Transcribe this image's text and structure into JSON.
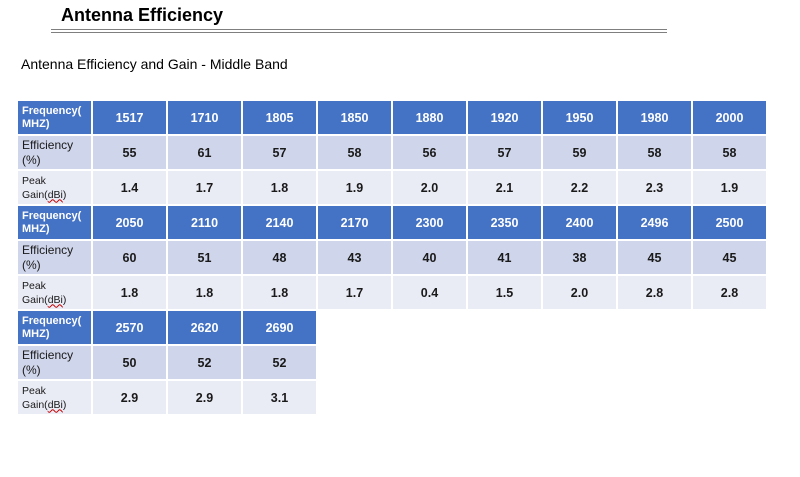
{
  "title": "Antenna Efficiency",
  "subtitle": "Antenna Efficiency and Gain  - Middle Band",
  "row_labels": {
    "freq_line1": "Frequency(",
    "freq_line2": "MHZ)",
    "eff_line1": "Efficiency",
    "eff_line2": "(%)",
    "gain_line1": "Peak",
    "gain_pre": "Gain(",
    "gain_unit": "dBi",
    "gain_post": ")"
  },
  "blocks": [
    {
      "freq": [
        "1517",
        "1710",
        "1805",
        "1850",
        "1880",
        "1920",
        "1950",
        "1980",
        "2000"
      ],
      "eff": [
        "55",
        "61",
        "57",
        "58",
        "56",
        "57",
        "59",
        "58",
        "58"
      ],
      "gain": [
        "1.4",
        "1.7",
        "1.8",
        "1.9",
        "2.0",
        "2.1",
        "2.2",
        "2.3",
        "1.9"
      ]
    },
    {
      "freq": [
        "2050",
        "2110",
        "2140",
        "2170",
        "2300",
        "2350",
        "2400",
        "2496",
        "2500"
      ],
      "eff": [
        "60",
        "51",
        "48",
        "43",
        "40",
        "41",
        "38",
        "45",
        "45"
      ],
      "gain": [
        "1.8",
        "1.8",
        "1.8",
        "1.7",
        "0.4",
        "1.5",
        "2.0",
        "2.8",
        "2.8"
      ]
    },
    {
      "freq": [
        "2570",
        "2620",
        "2690"
      ],
      "eff": [
        "50",
        "52",
        "52"
      ],
      "gain": [
        "2.9",
        "2.9",
        "3.1"
      ]
    }
  ],
  "colors": {
    "header_fill": "#4472c4",
    "efficiency_fill": "#cfd5ea",
    "gain_fill": "#e9ebf5"
  }
}
